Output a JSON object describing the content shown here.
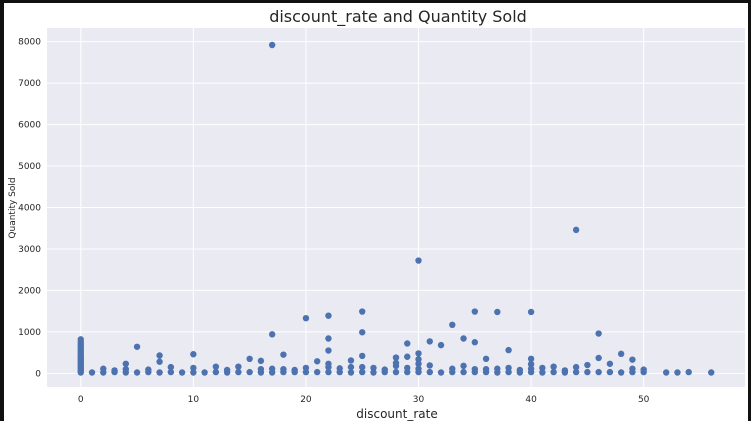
{
  "chart_data": {
    "type": "scatter",
    "title": "discount_rate and Quantity Sold",
    "xlabel": "discount_rate",
    "ylabel": "Quantity Sold",
    "xlim": [
      -3,
      59
    ],
    "ylim": [
      -330,
      8330
    ],
    "xticks": [
      0,
      10,
      20,
      30,
      40,
      50
    ],
    "yticks": [
      0,
      1000,
      2000,
      3000,
      4000,
      5000,
      6000,
      7000,
      8000
    ],
    "grid": true,
    "legend": "none",
    "colors": {
      "point": "#4c72b0",
      "plot_bg": "#eaeaf2",
      "grid": "#ffffff"
    },
    "points": [
      [
        0,
        820
      ],
      [
        0,
        760
      ],
      [
        0,
        710
      ],
      [
        0,
        660
      ],
      [
        0,
        610
      ],
      [
        0,
        560
      ],
      [
        0,
        510
      ],
      [
        0,
        460
      ],
      [
        0,
        420
      ],
      [
        0,
        380
      ],
      [
        0,
        340
      ],
      [
        0,
        300
      ],
      [
        0,
        260
      ],
      [
        0,
        220
      ],
      [
        0,
        180
      ],
      [
        0,
        140
      ],
      [
        0,
        100
      ],
      [
        0,
        60
      ],
      [
        0,
        20
      ],
      [
        1,
        20
      ],
      [
        2,
        20
      ],
      [
        2,
        110
      ],
      [
        3,
        30
      ],
      [
        3,
        70
      ],
      [
        4,
        20
      ],
      [
        4,
        100
      ],
      [
        4,
        230
      ],
      [
        5,
        640
      ],
      [
        5,
        20
      ],
      [
        6,
        30
      ],
      [
        6,
        90
      ],
      [
        7,
        20
      ],
      [
        7,
        280
      ],
      [
        7,
        430
      ],
      [
        8,
        30
      ],
      [
        8,
        150
      ],
      [
        9,
        20
      ],
      [
        10,
        20
      ],
      [
        10,
        130
      ],
      [
        10,
        460
      ],
      [
        11,
        20
      ],
      [
        12,
        30
      ],
      [
        12,
        160
      ],
      [
        13,
        20
      ],
      [
        13,
        80
      ],
      [
        14,
        30
      ],
      [
        14,
        160
      ],
      [
        15,
        30
      ],
      [
        15,
        350
      ],
      [
        16,
        20
      ],
      [
        16,
        100
      ],
      [
        16,
        300
      ],
      [
        17,
        20
      ],
      [
        17,
        110
      ],
      [
        17,
        940
      ],
      [
        17,
        7920
      ],
      [
        18,
        30
      ],
      [
        18,
        100
      ],
      [
        18,
        450
      ],
      [
        19,
        30
      ],
      [
        19,
        80
      ],
      [
        20,
        30
      ],
      [
        20,
        130
      ],
      [
        20,
        1330
      ],
      [
        21,
        30
      ],
      [
        21,
        290
      ],
      [
        22,
        30
      ],
      [
        22,
        150
      ],
      [
        22,
        230
      ],
      [
        22,
        550
      ],
      [
        22,
        840
      ],
      [
        22,
        1390
      ],
      [
        23,
        30
      ],
      [
        23,
        120
      ],
      [
        24,
        20
      ],
      [
        24,
        150
      ],
      [
        24,
        310
      ],
      [
        25,
        30
      ],
      [
        25,
        150
      ],
      [
        25,
        420
      ],
      [
        25,
        990
      ],
      [
        25,
        1490
      ],
      [
        26,
        20
      ],
      [
        26,
        130
      ],
      [
        27,
        30
      ],
      [
        27,
        90
      ],
      [
        28,
        30
      ],
      [
        28,
        180
      ],
      [
        28,
        250
      ],
      [
        28,
        380
      ],
      [
        29,
        30
      ],
      [
        29,
        130
      ],
      [
        29,
        400
      ],
      [
        29,
        720
      ],
      [
        30,
        30
      ],
      [
        30,
        110
      ],
      [
        30,
        230
      ],
      [
        30,
        340
      ],
      [
        30,
        480
      ],
      [
        30,
        2720
      ],
      [
        31,
        30
      ],
      [
        31,
        190
      ],
      [
        31,
        770
      ],
      [
        32,
        20
      ],
      [
        32,
        680
      ],
      [
        33,
        30
      ],
      [
        33,
        110
      ],
      [
        33,
        1170
      ],
      [
        34,
        30
      ],
      [
        34,
        180
      ],
      [
        34,
        840
      ],
      [
        35,
        30
      ],
      [
        35,
        100
      ],
      [
        35,
        750
      ],
      [
        35,
        1490
      ],
      [
        36,
        30
      ],
      [
        36,
        100
      ],
      [
        36,
        350
      ],
      [
        37,
        20
      ],
      [
        37,
        110
      ],
      [
        37,
        1480
      ],
      [
        38,
        30
      ],
      [
        38,
        130
      ],
      [
        38,
        560
      ],
      [
        39,
        20
      ],
      [
        39,
        80
      ],
      [
        40,
        30
      ],
      [
        40,
        110
      ],
      [
        40,
        220
      ],
      [
        40,
        350
      ],
      [
        40,
        1480
      ],
      [
        41,
        20
      ],
      [
        41,
        130
      ],
      [
        42,
        30
      ],
      [
        42,
        160
      ],
      [
        43,
        20
      ],
      [
        43,
        70
      ],
      [
        44,
        30
      ],
      [
        44,
        150
      ],
      [
        44,
        3460
      ],
      [
        45,
        30
      ],
      [
        45,
        200
      ],
      [
        46,
        30
      ],
      [
        46,
        370
      ],
      [
        46,
        960
      ],
      [
        47,
        30
      ],
      [
        47,
        230
      ],
      [
        48,
        20
      ],
      [
        48,
        470
      ],
      [
        49,
        30
      ],
      [
        49,
        110
      ],
      [
        49,
        330
      ],
      [
        50,
        30
      ],
      [
        50,
        90
      ],
      [
        52,
        20
      ],
      [
        53,
        20
      ],
      [
        54,
        30
      ],
      [
        56,
        20
      ]
    ]
  }
}
